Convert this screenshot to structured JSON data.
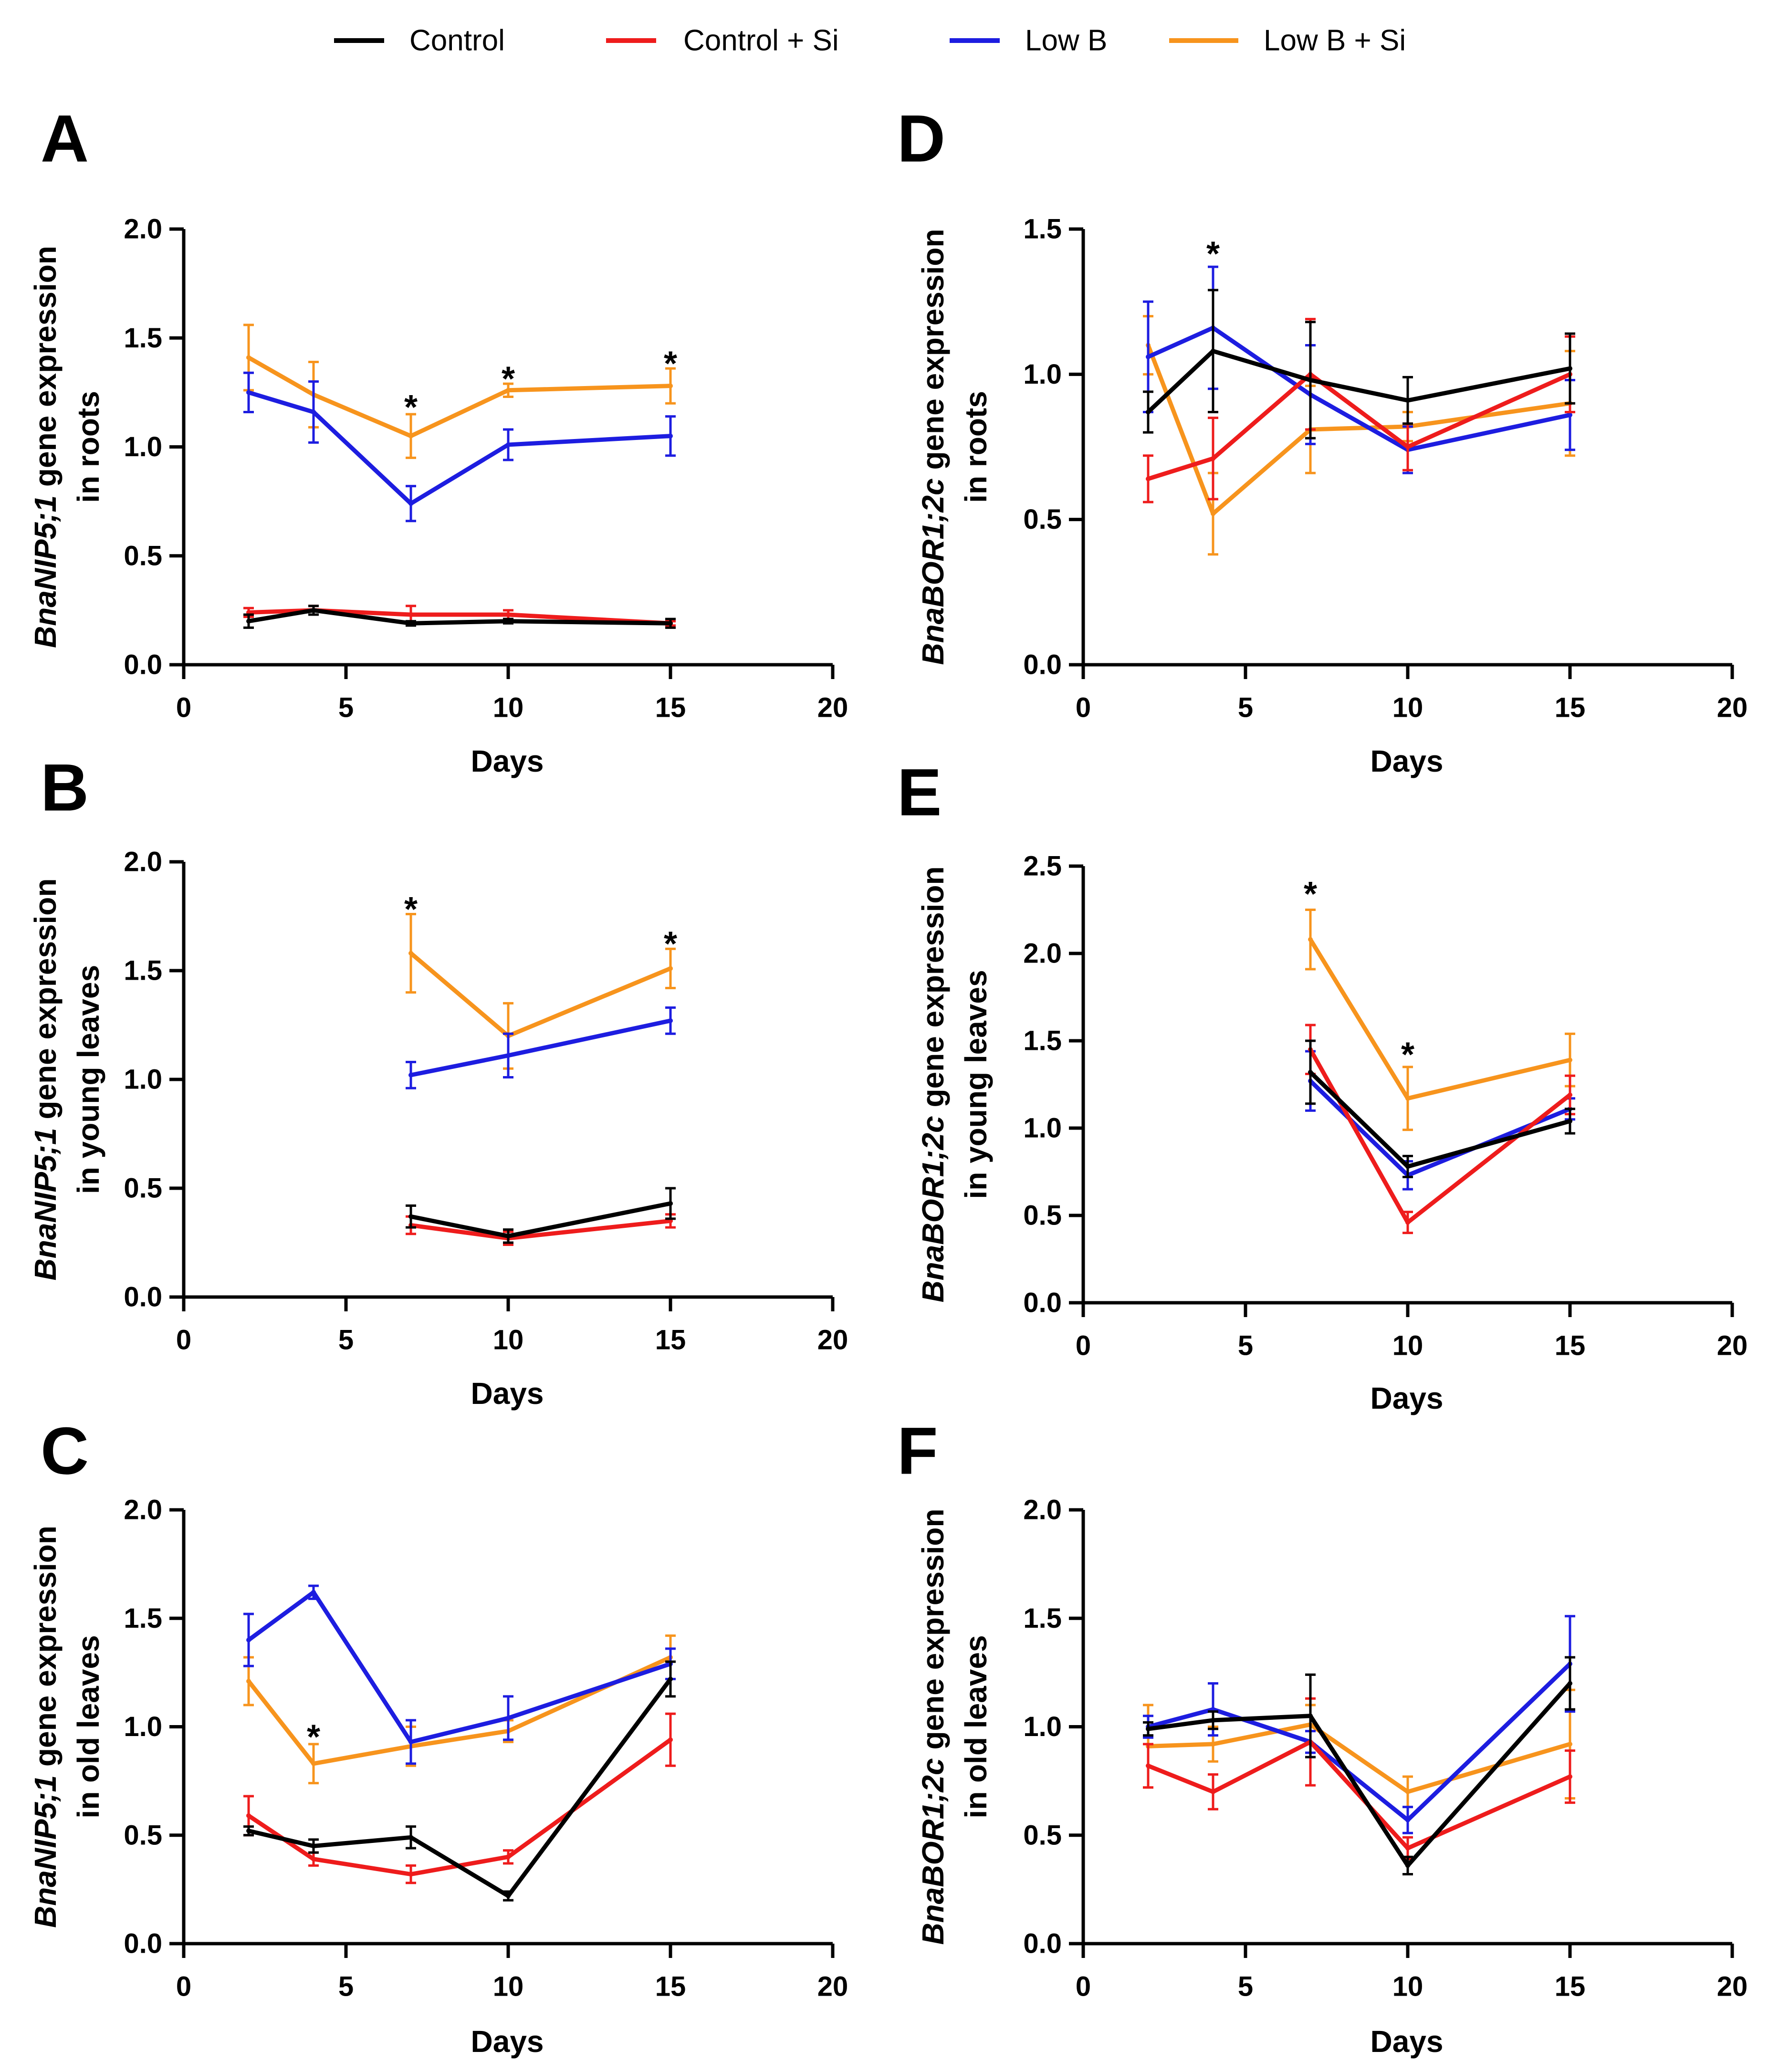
{
  "legend": [
    {
      "label": "Control",
      "color": "#000000"
    },
    {
      "label": "Control + Si",
      "color": "#ee1c1c"
    },
    {
      "label": "Low B",
      "color": "#1d1de0"
    },
    {
      "label": "Low B + Si",
      "color": "#f7941d"
    }
  ],
  "chart_data": [
    {
      "type": "line",
      "panel": "A",
      "title": "",
      "ylabel_gene": "BnaNIP5;1",
      "ylabel_rest": " gene expression",
      "ylabel_line2": "in roots",
      "xlabel": "Days",
      "xlim": [
        0,
        20
      ],
      "ylim": [
        0,
        2.0
      ],
      "xticks": [
        0,
        5,
        10,
        15,
        20
      ],
      "yticks": [
        {
          "v": 0,
          "t": "0.0"
        },
        {
          "v": 0.5,
          "t": "0.5"
        },
        {
          "v": 1.0,
          "t": "1.0"
        },
        {
          "v": 1.5,
          "t": "1.5"
        },
        {
          "v": 2.0,
          "t": "2.0"
        }
      ],
      "series": [
        {
          "name": "Control",
          "x": [
            2,
            4,
            7,
            10,
            15
          ],
          "y": [
            0.2,
            0.25,
            0.19,
            0.2,
            0.19
          ],
          "err": [
            0.03,
            0.02,
            0.01,
            0.01,
            0.02
          ]
        },
        {
          "name": "Control + Si",
          "x": [
            2,
            4,
            7,
            10,
            15
          ],
          "y": [
            0.24,
            0.25,
            0.23,
            0.23,
            0.19
          ],
          "err": [
            0.02,
            0.02,
            0.04,
            0.02,
            0.01
          ]
        },
        {
          "name": "Low B",
          "x": [
            2,
            4,
            7,
            10,
            15
          ],
          "y": [
            1.25,
            1.16,
            0.74,
            1.01,
            1.05
          ],
          "err": [
            0.09,
            0.14,
            0.08,
            0.07,
            0.09
          ]
        },
        {
          "name": "Low B + Si",
          "x": [
            2,
            4,
            7,
            10,
            15
          ],
          "y": [
            1.41,
            1.24,
            1.05,
            1.26,
            1.28
          ],
          "err": [
            0.15,
            0.15,
            0.1,
            0.03,
            0.08
          ]
        }
      ],
      "significance": [
        {
          "x": 7,
          "y": 1.19,
          "text": "*"
        },
        {
          "x": 10,
          "y": 1.32,
          "text": "*"
        },
        {
          "x": 15,
          "y": 1.39,
          "text": "*"
        }
      ]
    },
    {
      "type": "line",
      "panel": "B",
      "title": "",
      "ylabel_gene": "BnaNIP5;1",
      "ylabel_rest": " gene expression",
      "ylabel_line2": "in young leaves",
      "xlabel": "Days",
      "xlim": [
        0,
        20
      ],
      "ylim": [
        0,
        2.0
      ],
      "xticks": [
        0,
        5,
        10,
        15,
        20
      ],
      "yticks": [
        {
          "v": 0,
          "t": "0.0"
        },
        {
          "v": 0.5,
          "t": "0.5"
        },
        {
          "v": 1.0,
          "t": "1.0"
        },
        {
          "v": 1.5,
          "t": "1.5"
        },
        {
          "v": 2.0,
          "t": "2.0"
        }
      ],
      "series": [
        {
          "name": "Control",
          "x": [
            7,
            10,
            15
          ],
          "y": [
            0.37,
            0.28,
            0.43
          ],
          "err": [
            0.05,
            0.03,
            0.07
          ]
        },
        {
          "name": "Control + Si",
          "x": [
            7,
            10,
            15
          ],
          "y": [
            0.33,
            0.27,
            0.35
          ],
          "err": [
            0.04,
            0.03,
            0.03
          ]
        },
        {
          "name": "Low B",
          "x": [
            7,
            10,
            15
          ],
          "y": [
            1.02,
            1.11,
            1.27
          ],
          "err": [
            0.06,
            0.1,
            0.06
          ]
        },
        {
          "name": "Low B + Si",
          "x": [
            7,
            10,
            15
          ],
          "y": [
            1.58,
            1.2,
            1.51
          ],
          "err": [
            0.18,
            0.15,
            0.09
          ]
        }
      ],
      "significance": [
        {
          "x": 7,
          "y": 1.79,
          "text": "*"
        },
        {
          "x": 15,
          "y": 1.63,
          "text": "*"
        }
      ]
    },
    {
      "type": "line",
      "panel": "C",
      "title": "",
      "ylabel_gene": "BnaNIP5;1",
      "ylabel_rest": " gene expression",
      "ylabel_line2": "in old leaves",
      "xlabel": "Days",
      "xlim": [
        0,
        20
      ],
      "ylim": [
        0,
        2.0
      ],
      "xticks": [
        0,
        5,
        10,
        15,
        20
      ],
      "yticks": [
        {
          "v": 0,
          "t": "0.0"
        },
        {
          "v": 0.5,
          "t": "0.5"
        },
        {
          "v": 1.0,
          "t": "1.0"
        },
        {
          "v": 1.5,
          "t": "1.5"
        },
        {
          "v": 2.0,
          "t": "2.0"
        }
      ],
      "series": [
        {
          "name": "Control",
          "x": [
            2,
            4,
            7,
            10,
            15
          ],
          "y": [
            0.52,
            0.45,
            0.49,
            0.22,
            1.22
          ],
          "err": [
            0.02,
            0.03,
            0.05,
            0.02,
            0.08
          ]
        },
        {
          "name": "Control + Si",
          "x": [
            2,
            4,
            7,
            10,
            15
          ],
          "y": [
            0.59,
            0.39,
            0.32,
            0.4,
            0.94
          ],
          "err": [
            0.09,
            0.03,
            0.04,
            0.03,
            0.12
          ]
        },
        {
          "name": "Low B",
          "x": [
            2,
            4,
            7,
            10,
            15
          ],
          "y": [
            1.4,
            1.62,
            0.93,
            1.04,
            1.29
          ],
          "err": [
            0.12,
            0.03,
            0.1,
            0.1,
            0.07
          ]
        },
        {
          "name": "Low B + Si",
          "x": [
            2,
            4,
            7,
            10,
            15
          ],
          "y": [
            1.21,
            0.83,
            0.91,
            0.98,
            1.32
          ],
          "err": [
            0.11,
            0.09,
            0.09,
            0.05,
            0.1
          ]
        }
      ],
      "significance": [
        {
          "x": 4,
          "y": 0.96,
          "text": "*"
        }
      ]
    },
    {
      "type": "line",
      "panel": "D",
      "title": "",
      "ylabel_gene": "BnaBOR1;2c",
      "ylabel_rest": " gene expression",
      "ylabel_line2": "in roots",
      "xlabel": "Days",
      "xlim": [
        0,
        20
      ],
      "ylim": [
        0,
        1.5
      ],
      "xticks": [
        0,
        5,
        10,
        15,
        20
      ],
      "yticks": [
        {
          "v": 0,
          "t": "0.0"
        },
        {
          "v": 0.5,
          "t": "0.5"
        },
        {
          "v": 1.0,
          "t": "1.0"
        },
        {
          "v": 1.5,
          "t": "1.5"
        }
      ],
      "series": [
        {
          "name": "Control",
          "x": [
            2,
            4,
            7,
            10,
            15
          ],
          "y": [
            0.87,
            1.08,
            0.98,
            0.91,
            1.02
          ],
          "err": [
            0.07,
            0.21,
            0.2,
            0.08,
            0.12
          ]
        },
        {
          "name": "Control + Si",
          "x": [
            2,
            4,
            7,
            10,
            15
          ],
          "y": [
            0.64,
            0.71,
            1.0,
            0.75,
            1.0
          ],
          "err": [
            0.08,
            0.14,
            0.19,
            0.08,
            0.13
          ]
        },
        {
          "name": "Low B",
          "x": [
            2,
            4,
            7,
            10,
            15
          ],
          "y": [
            1.06,
            1.16,
            0.93,
            0.74,
            0.86
          ],
          "err": [
            0.19,
            0.21,
            0.17,
            0.08,
            0.12
          ]
        },
        {
          "name": "Low B + Si",
          "x": [
            2,
            4,
            7,
            10,
            15
          ],
          "y": [
            1.1,
            0.52,
            0.81,
            0.82,
            0.9
          ],
          "err": [
            0.1,
            0.14,
            0.15,
            0.05,
            0.18
          ]
        }
      ],
      "significance": [
        {
          "x": 4,
          "y": 1.42,
          "text": "*"
        }
      ]
    },
    {
      "type": "line",
      "panel": "E",
      "title": "",
      "ylabel_gene": "BnaBOR1;2c",
      "ylabel_rest": " gene expression",
      "ylabel_line2": "in young leaves",
      "xlabel": "Days",
      "xlim": [
        0,
        20
      ],
      "ylim": [
        0,
        2.5
      ],
      "xticks": [
        0,
        5,
        10,
        15,
        20
      ],
      "yticks": [
        {
          "v": 0,
          "t": "0.0"
        },
        {
          "v": 0.5,
          "t": "0.5"
        },
        {
          "v": 1.0,
          "t": "1.0"
        },
        {
          "v": 1.5,
          "t": "1.5"
        },
        {
          "v": 2.0,
          "t": "2.0"
        },
        {
          "v": 2.5,
          "t": "2.5"
        }
      ],
      "series": [
        {
          "name": "Control",
          "x": [
            7,
            10,
            15
          ],
          "y": [
            1.32,
            0.78,
            1.04
          ],
          "err": [
            0.18,
            0.06,
            0.07
          ]
        },
        {
          "name": "Control + Si",
          "x": [
            7,
            10,
            15
          ],
          "y": [
            1.45,
            0.46,
            1.19
          ],
          "err": [
            0.14,
            0.06,
            0.11
          ]
        },
        {
          "name": "Low B",
          "x": [
            7,
            10,
            15
          ],
          "y": [
            1.27,
            0.73,
            1.11
          ],
          "err": [
            0.17,
            0.08,
            0.06
          ]
        },
        {
          "name": "Low B + Si",
          "x": [
            7,
            10,
            15
          ],
          "y": [
            2.08,
            1.17,
            1.39
          ],
          "err": [
            0.17,
            0.18,
            0.15
          ]
        }
      ],
      "significance": [
        {
          "x": 7,
          "y": 2.35,
          "text": "*"
        },
        {
          "x": 10,
          "y": 1.43,
          "text": "*"
        }
      ]
    },
    {
      "type": "line",
      "panel": "F",
      "title": "",
      "ylabel_gene": "BnaBOR1;2c",
      "ylabel_rest": " gene expression",
      "ylabel_line2": "in old leaves",
      "xlabel": "Days",
      "xlim": [
        0,
        20
      ],
      "ylim": [
        0,
        2.0
      ],
      "xticks": [
        0,
        5,
        10,
        15,
        20
      ],
      "yticks": [
        {
          "v": 0,
          "t": "0.0"
        },
        {
          "v": 0.5,
          "t": "0.5"
        },
        {
          "v": 1.0,
          "t": "1.0"
        },
        {
          "v": 1.5,
          "t": "1.5"
        },
        {
          "v": 2.0,
          "t": "2.0"
        }
      ],
      "series": [
        {
          "name": "Control",
          "x": [
            2,
            4,
            7,
            10,
            15
          ],
          "y": [
            0.99,
            1.03,
            1.05,
            0.36,
            1.2
          ],
          "err": [
            0.03,
            0.04,
            0.19,
            0.04,
            0.12
          ]
        },
        {
          "name": "Control + Si",
          "x": [
            2,
            4,
            7,
            10,
            15
          ],
          "y": [
            0.82,
            0.7,
            0.93,
            0.44,
            0.77
          ],
          "err": [
            0.1,
            0.08,
            0.2,
            0.05,
            0.12
          ]
        },
        {
          "name": "Low B",
          "x": [
            2,
            4,
            7,
            10,
            15
          ],
          "y": [
            1.0,
            1.08,
            0.93,
            0.57,
            1.29
          ],
          "err": [
            0.05,
            0.12,
            0.05,
            0.06,
            0.22
          ]
        },
        {
          "name": "Low B + Si",
          "x": [
            2,
            4,
            7,
            10,
            15
          ],
          "y": [
            0.91,
            0.92,
            1.01,
            0.7,
            0.92
          ],
          "err": [
            0.19,
            0.08,
            0.09,
            0.07,
            0.25
          ]
        }
      ],
      "significance": []
    }
  ]
}
